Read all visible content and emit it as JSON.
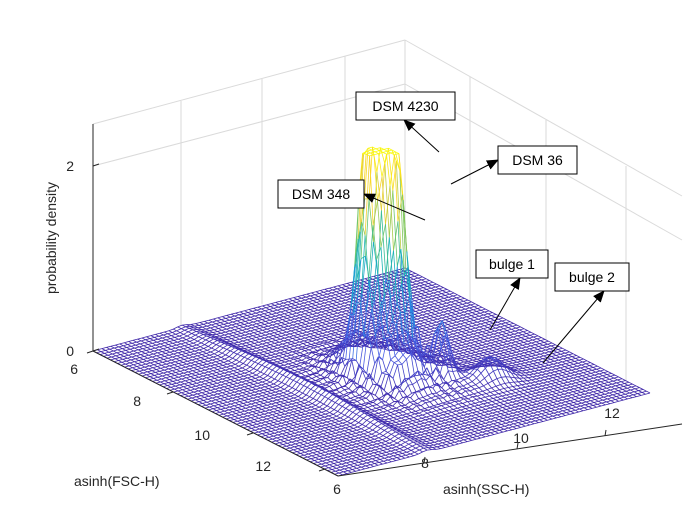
{
  "chart_data": {
    "type": "surface",
    "title": "",
    "xlabel": "asinh(SSC-H)",
    "ylabel": "asinh(FSC-H)",
    "zlabel": "probability density",
    "xticks": [
      "6",
      "8",
      "10",
      "12"
    ],
    "yticks": [
      "6",
      "8",
      "10",
      "12"
    ],
    "zticks": [
      "0",
      "2"
    ],
    "xlim": [
      6,
      13
    ],
    "ylim": [
      6,
      13
    ],
    "zlim": [
      0,
      2.2
    ],
    "colormap": [
      "#3e26a8",
      "#4a5fe6",
      "#1f96e0",
      "#1bb6b1",
      "#7fc85d",
      "#f9d02a",
      "#f9fb0e"
    ],
    "peaks": [
      {
        "x": 9.55,
        "y": 9.55,
        "z": 2.2
      },
      {
        "x": 9.8,
        "y": 9.75,
        "z": 2.2
      },
      {
        "x": 9.3,
        "y": 9.6,
        "z": 1.6
      },
      {
        "x": 10.3,
        "y": 10.5,
        "z": 0.5
      },
      {
        "x": 11.0,
        "y": 11.0,
        "z": 0.2
      }
    ],
    "annotations": [
      {
        "text": "DSM 4230"
      },
      {
        "text": "DSM 36"
      },
      {
        "text": "DSM 348"
      },
      {
        "text": "bulge 1"
      },
      {
        "text": "bulge 2"
      }
    ]
  }
}
